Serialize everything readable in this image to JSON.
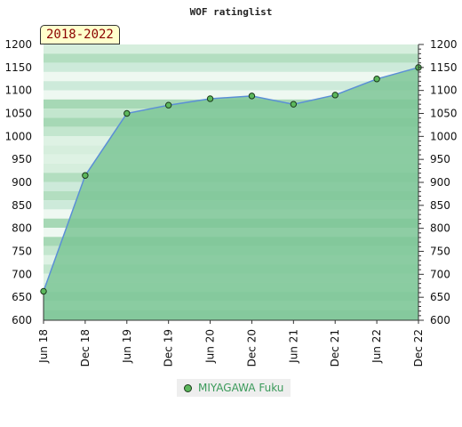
{
  "chart_data": {
    "type": "area",
    "title": "WOF ratinglist",
    "badge": "2018-2022",
    "x": [
      "Jun 18",
      "Dec 18",
      "Jun 19",
      "Dec 19",
      "Jun 20",
      "Dec 20",
      "Jun 21",
      "Dec 21",
      "Jun 22",
      "Dec 22"
    ],
    "series": [
      {
        "name": "MIYAGAWA Fuku",
        "values": [
          663,
          915,
          1050,
          1068,
          1082,
          1088,
          1070,
          1090,
          1125,
          1150
        ]
      }
    ],
    "ylim": [
      600,
      1200
    ],
    "yticks": [
      600,
      650,
      700,
      750,
      800,
      850,
      900,
      950,
      1000,
      1050,
      1100,
      1150,
      1200
    ],
    "colors": {
      "line": "#5b8fd6",
      "area": "#7cc596",
      "marker": "#5cb85c"
    },
    "legend_position": "bottom-center",
    "grid": false
  }
}
